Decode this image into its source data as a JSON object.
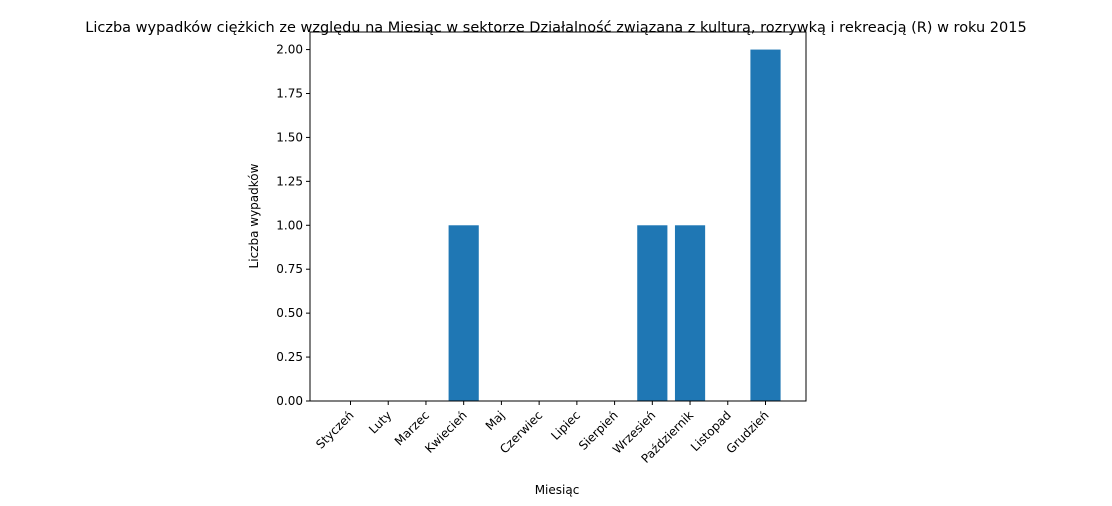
{
  "chart_data": {
    "type": "bar",
    "title": "Liczba wypadków ciężkich ze względu na Miesiąc w sektorze Działalność związana z kulturą, rozrywką i rekreacją  (R) w roku 2015",
    "xlabel": "Miesiąc",
    "ylabel": "Liczba wypadków",
    "categories": [
      "Styczeń",
      "Luty",
      "Marzec",
      "Kwiecień",
      "Maj",
      "Czerwiec",
      "Lipiec",
      "Sierpień",
      "Wrzesień",
      "Październik",
      "Listopad",
      "Grudzień"
    ],
    "values": [
      0,
      0,
      0,
      1,
      0,
      0,
      0,
      0,
      1,
      1,
      0,
      2
    ],
    "ylim": [
      0,
      2.1
    ],
    "yticks": [
      "0.00",
      "0.25",
      "0.50",
      "0.75",
      "1.00",
      "1.25",
      "1.50",
      "1.75",
      "2.00"
    ],
    "grid": false,
    "bar_color": "#1f77b4"
  }
}
